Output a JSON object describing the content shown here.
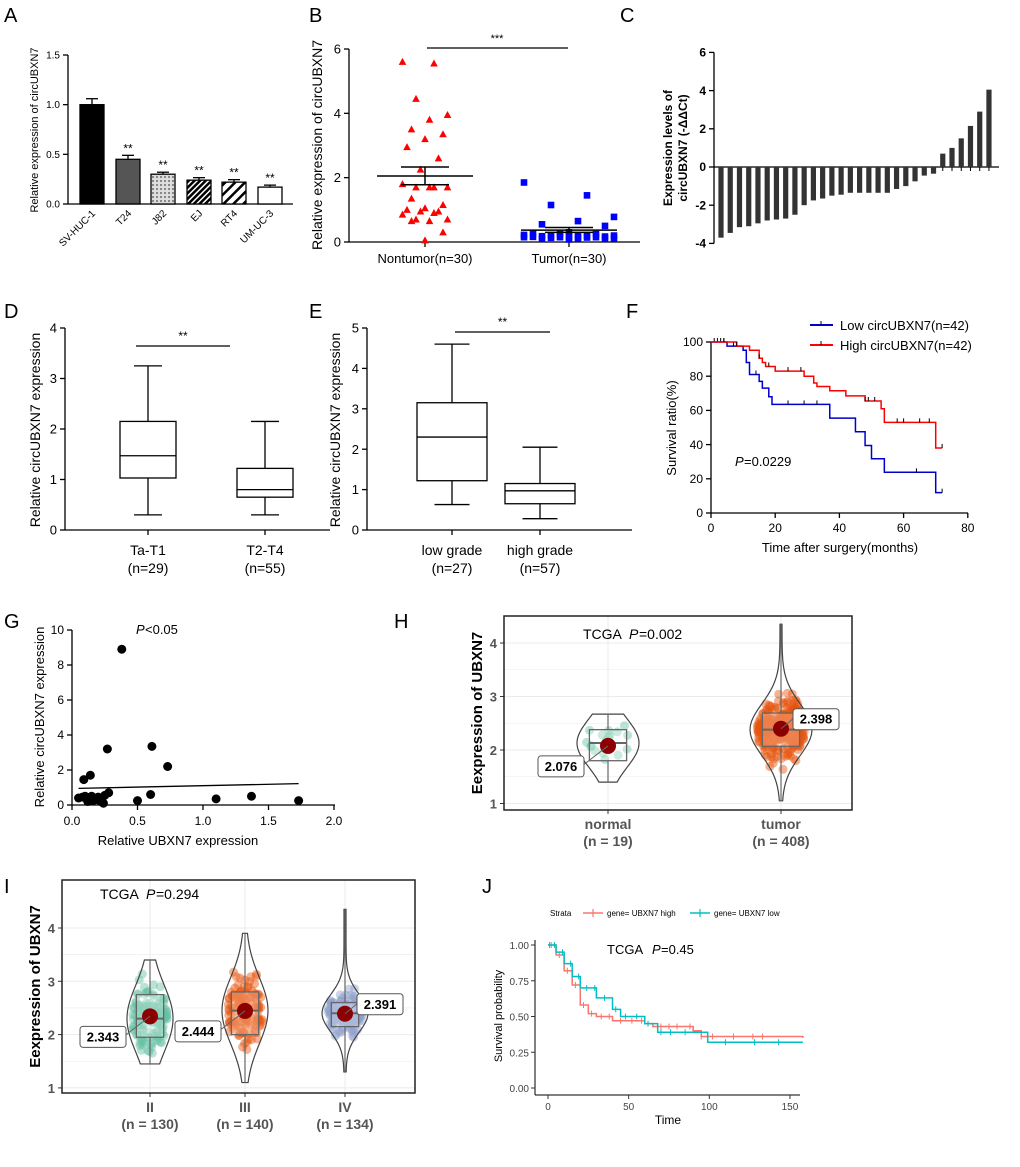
{
  "panel_labels": [
    "A",
    "B",
    "C",
    "D",
    "E",
    "F",
    "G",
    "H",
    "I",
    "J"
  ],
  "chart_data": [
    {
      "panel": "A",
      "type": "bar",
      "ylabel": "Relative expression of circUBXN7",
      "ylim": [
        0,
        1.5
      ],
      "yticks": [
        "0.0",
        "0.5",
        "1.0",
        "1.5"
      ],
      "categories": [
        "SV-HUC-1",
        "T24",
        "J82",
        "EJ",
        "RT4",
        "UM-UC-3"
      ],
      "values": [
        1.0,
        0.45,
        0.3,
        0.24,
        0.22,
        0.17
      ],
      "errors": [
        0.06,
        0.04,
        0.02,
        0.025,
        0.025,
        0.02
      ],
      "annotations": [
        "",
        "**",
        "**",
        "**",
        "**",
        "**"
      ],
      "fills": [
        "#000000",
        "#555555",
        "pattern-dots",
        "pattern-dense-hatch",
        "pattern-hatch",
        "#ffffff"
      ]
    },
    {
      "panel": "B",
      "type": "scatter",
      "ylabel": "Relative expression of circUBXN7",
      "ylim": [
        0,
        6
      ],
      "yticks": [
        "0",
        "2",
        "4",
        "6"
      ],
      "categories": [
        "Nontumor(n=30)",
        "Tumor(n=30)"
      ],
      "series": [
        {
          "color": "#ff0000",
          "marker": "triangle",
          "mean": 2.05,
          "sem": [
            1.78,
            2.33
          ],
          "values": [
            5.6,
            5.55,
            4.45,
            3.95,
            3.8,
            3.5,
            3.35,
            3.2,
            2.95,
            2.6,
            2.25,
            1.8,
            1.7,
            1.7,
            1.7,
            1.7,
            1.35,
            1.15,
            1.05,
            1.0,
            0.95,
            0.95,
            0.85,
            0.9,
            0.7,
            0.7,
            0.65,
            0.65,
            0.3,
            0.05
          ]
        },
        {
          "color": "#0000ff",
          "marker": "square",
          "mean": 0.37,
          "sem": [
            0.3,
            0.45
          ],
          "values": [
            1.85,
            1.45,
            1.15,
            0.78,
            0.65,
            0.55,
            0.5,
            0.3,
            0.28,
            0.25,
            0.25,
            0.22,
            0.2,
            0.2,
            0.2,
            0.18,
            0.18,
            0.17,
            0.17,
            0.16,
            0.15,
            0.15,
            0.15,
            0.14,
            0.13,
            0.12,
            0.12,
            0.1,
            0.1,
            0.08
          ]
        }
      ],
      "significance": "***"
    },
    {
      "panel": "C",
      "type": "bar",
      "ylabel": [
        "Expression  levels of",
        "circUBXN7 (-ΔΔCt)"
      ],
      "ylim": [
        -4,
        6
      ],
      "yticks": [
        "-4",
        "-2",
        "0",
        "2",
        "4",
        "6"
      ],
      "values": [
        -3.7,
        -3.45,
        -3.15,
        -3.1,
        -2.95,
        -2.8,
        -2.75,
        -2.7,
        -2.5,
        -2.0,
        -1.75,
        -1.65,
        -1.5,
        -1.45,
        -1.35,
        -1.35,
        -1.35,
        -1.35,
        -1.35,
        -1.15,
        -1.0,
        -0.75,
        -0.45,
        -0.35,
        0.7,
        1.0,
        1.5,
        2.15,
        2.9,
        4.05
      ],
      "color": "#333333"
    },
    {
      "panel": "D",
      "type": "box",
      "ylabel": "Relative circUBXN7 expression",
      "ylim": [
        0,
        4
      ],
      "yticks": [
        "0",
        "1",
        "2",
        "3",
        "4"
      ],
      "categories": [
        [
          "Ta-T1",
          "(n=29)"
        ],
        [
          "T2-T4",
          "(n=55)"
        ]
      ],
      "boxes": [
        {
          "min": 0.3,
          "q1": 1.03,
          "median": 1.47,
          "q3": 2.15,
          "max": 3.25
        },
        {
          "min": 0.3,
          "q1": 0.65,
          "median": 0.8,
          "q3": 1.22,
          "max": 2.15
        }
      ],
      "significance": "**"
    },
    {
      "panel": "E",
      "type": "box",
      "ylabel": "Relative circUBXN7 expression",
      "ylim": [
        0,
        5
      ],
      "yticks": [
        "0",
        "1",
        "2",
        "3",
        "4",
        "5"
      ],
      "categories": [
        [
          "low grade",
          "(n=27)"
        ],
        [
          "high grade",
          "(n=57)"
        ]
      ],
      "boxes": [
        {
          "min": 0.63,
          "q1": 1.22,
          "median": 2.3,
          "q3": 3.15,
          "max": 4.6
        },
        {
          "min": 0.28,
          "q1": 0.65,
          "median": 0.97,
          "q3": 1.15,
          "max": 2.05
        }
      ],
      "significance": "**"
    },
    {
      "panel": "F",
      "type": "line",
      "xlabel": "Time after surgery(months)",
      "ylabel": "Survival ratio(%)",
      "xlim": [
        0,
        80
      ],
      "ylim": [
        0,
        100
      ],
      "xticks": [
        "0",
        "20",
        "40",
        "60",
        "80"
      ],
      "yticks": [
        "0",
        "20",
        "40",
        "60",
        "80",
        "100"
      ],
      "annotation_p_italic": "P",
      "annotation_p_value": "=0.0229",
      "legend_position": "top-right",
      "series": [
        {
          "name": "Low circUBXN7(n=42)",
          "color": "#0000cc",
          "steps": [
            [
              0,
              100
            ],
            [
              5,
              97.6
            ],
            [
              10,
              95.2
            ],
            [
              11,
              88
            ],
            [
              12,
              81
            ],
            [
              15,
              77
            ],
            [
              16,
              73
            ],
            [
              18,
              68
            ],
            [
              19,
              63.5
            ],
            [
              37,
              55.5
            ],
            [
              45,
              47.5
            ],
            [
              48,
              39.5
            ],
            [
              50,
              31.7
            ],
            [
              54,
              23.8
            ],
            [
              70,
              11.9
            ],
            [
              72,
              11.9
            ]
          ],
          "censored": [
            1,
            2,
            3,
            4,
            7,
            14,
            24,
            29,
            33,
            64,
            72
          ]
        },
        {
          "name": "High circUBXN7(n=42)",
          "color": "#ff0000",
          "steps": [
            [
              0,
              100
            ],
            [
              8,
              97.6
            ],
            [
              12,
              95.2
            ],
            [
              15,
              90.5
            ],
            [
              16,
              88
            ],
            [
              17,
              85.7
            ],
            [
              20,
              83
            ],
            [
              29,
              80
            ],
            [
              32,
              76
            ],
            [
              33,
              74
            ],
            [
              37,
              71.5
            ],
            [
              42,
              68.5
            ],
            [
              48,
              65.5
            ],
            [
              53,
              61
            ],
            [
              54,
              53
            ],
            [
              70,
              38
            ],
            [
              72,
              38
            ]
          ],
          "censored": [
            4,
            8,
            15,
            18,
            24,
            28,
            48,
            49,
            51,
            58,
            60,
            65,
            68,
            72
          ]
        }
      ]
    },
    {
      "panel": "G",
      "type": "scatter",
      "xlabel": "Relative UBXN7 expression",
      "ylabel": "Relative circUBXN7 expression",
      "xlim": [
        0,
        2
      ],
      "ylim": [
        0,
        10
      ],
      "xticks": [
        "0.0",
        "0.5",
        "1.0",
        "1.5",
        "2.0"
      ],
      "yticks": [
        "0",
        "2",
        "4",
        "6",
        "8",
        "10"
      ],
      "annotation_p_italic": "P",
      "annotation_p_value": "<0.05",
      "points": [
        [
          0.05,
          0.4
        ],
        [
          0.08,
          0.45
        ],
        [
          0.09,
          1.45
        ],
        [
          0.1,
          0.5
        ],
        [
          0.12,
          0.2
        ],
        [
          0.13,
          0.35
        ],
        [
          0.14,
          1.7
        ],
        [
          0.15,
          0.5
        ],
        [
          0.16,
          0.25
        ],
        [
          0.18,
          0.3
        ],
        [
          0.2,
          0.45
        ],
        [
          0.22,
          0.2
        ],
        [
          0.24,
          0.1
        ],
        [
          0.25,
          0.55
        ],
        [
          0.27,
          3.2
        ],
        [
          0.28,
          0.7
        ],
        [
          0.38,
          8.9
        ],
        [
          0.5,
          0.25
        ],
        [
          0.6,
          0.6
        ],
        [
          0.61,
          3.35
        ],
        [
          0.73,
          2.2
        ],
        [
          1.1,
          0.35
        ],
        [
          1.37,
          0.5
        ],
        [
          1.73,
          0.25
        ]
      ],
      "fit_line": [
        [
          0.05,
          0.95
        ],
        [
          1.73,
          1.22
        ]
      ]
    },
    {
      "panel": "H",
      "type": "violin",
      "ylabel": "Eexpression of UBXN7",
      "ylim": [
        1,
        4.4
      ],
      "yticks": [
        "1",
        "2",
        "3",
        "4"
      ],
      "annotation_prefix": "TCGA",
      "annotation_p_italic": "P",
      "annotation_p_value": "=0.002",
      "groups": [
        {
          "label": "normal",
          "n": "(n = 19)",
          "mean": 2.076,
          "mean_label": "2.076",
          "color": "#66c2a5",
          "count": 19,
          "box": {
            "min": 1.4,
            "q1": 1.8,
            "median": 2.13,
            "q3": 2.38,
            "max": 2.67
          }
        },
        {
          "label": "tumor",
          "n": "(n = 408)",
          "mean": 2.398,
          "mean_label": "2.398",
          "color": "#e6550d",
          "count": 408,
          "box": {
            "min": 1.05,
            "q1": 2.07,
            "median": 2.38,
            "q3": 2.69,
            "max": 4.35
          }
        }
      ]
    },
    {
      "panel": "I",
      "type": "violin",
      "ylabel": "Eexpression of UBXN7",
      "ylim": [
        1,
        4.4
      ],
      "yticks": [
        "1",
        "2",
        "3",
        "4"
      ],
      "annotation_prefix": "TCGA",
      "annotation_p_italic": "P",
      "annotation_p_value": "=0.294",
      "groups": [
        {
          "label": "II",
          "n": "(n = 130)",
          "mean": 2.343,
          "mean_label": "2.343",
          "color": "#66c2a5",
          "count": 130,
          "box": {
            "min": 1.45,
            "q1": 1.95,
            "median": 2.3,
            "q3": 2.75,
            "max": 3.4
          }
        },
        {
          "label": "III",
          "n": "(n = 140)",
          "mean": 2.444,
          "mean_label": "2.444",
          "color": "#e6550d",
          "count": 140,
          "box": {
            "min": 1.1,
            "q1": 2.0,
            "median": 2.45,
            "q3": 2.8,
            "max": 3.9
          }
        },
        {
          "label": "IV",
          "n": "(n = 134)",
          "mean": 2.391,
          "mean_label": "2.391",
          "color": "#8da0cb",
          "count": 134,
          "box": {
            "min": 1.3,
            "q1": 2.15,
            "median": 2.4,
            "q3": 2.6,
            "max": 4.35
          }
        }
      ]
    },
    {
      "panel": "J",
      "type": "line",
      "xlabel": "Time",
      "ylabel": "Survival probability",
      "xlim": [
        0,
        158
      ],
      "ylim": [
        0,
        1
      ],
      "xticks": [
        "0",
        "50",
        "100",
        "150"
      ],
      "yticks": [
        "0.00",
        "0.25",
        "0.50",
        "0.75",
        "1.00"
      ],
      "legend_title": "Strata",
      "legend_position": "top",
      "annotation_prefix": "TCGA",
      "annotation_p_italic": "P",
      "annotation_p_value": "=0.45",
      "series": [
        {
          "name": "gene= UBXN7 high",
          "color": "#f8766d",
          "steps": [
            [
              0,
              1
            ],
            [
              5,
              0.93
            ],
            [
              10,
              0.82
            ],
            [
              15,
              0.72
            ],
            [
              20,
              0.58
            ],
            [
              25,
              0.52
            ],
            [
              30,
              0.5
            ],
            [
              40,
              0.47
            ],
            [
              60,
              0.45
            ],
            [
              65,
              0.43
            ],
            [
              88,
              0.43
            ],
            [
              90,
              0.4
            ],
            [
              95,
              0.36
            ],
            [
              158,
              0.35
            ]
          ],
          "censored": [
            2,
            7,
            12,
            17,
            22,
            27,
            33,
            38,
            45,
            52,
            58,
            70,
            75,
            80,
            88,
            95,
            102,
            115,
            127,
            133
          ]
        },
        {
          "name": "gene= UBXN7 low",
          "color": "#00bfc4",
          "steps": [
            [
              0,
              1
            ],
            [
              5,
              0.95
            ],
            [
              10,
              0.87
            ],
            [
              15,
              0.78
            ],
            [
              20,
              0.7
            ],
            [
              30,
              0.63
            ],
            [
              40,
              0.55
            ],
            [
              45,
              0.5
            ],
            [
              60,
              0.45
            ],
            [
              68,
              0.39
            ],
            [
              98,
              0.39
            ],
            [
              99,
              0.32
            ],
            [
              158,
              0.32
            ]
          ],
          "censored": [
            1,
            4,
            9,
            14,
            19,
            24,
            29,
            35,
            42,
            48,
            55,
            62,
            70,
            76,
            85,
            110,
            128,
            143
          ]
        }
      ]
    }
  ]
}
